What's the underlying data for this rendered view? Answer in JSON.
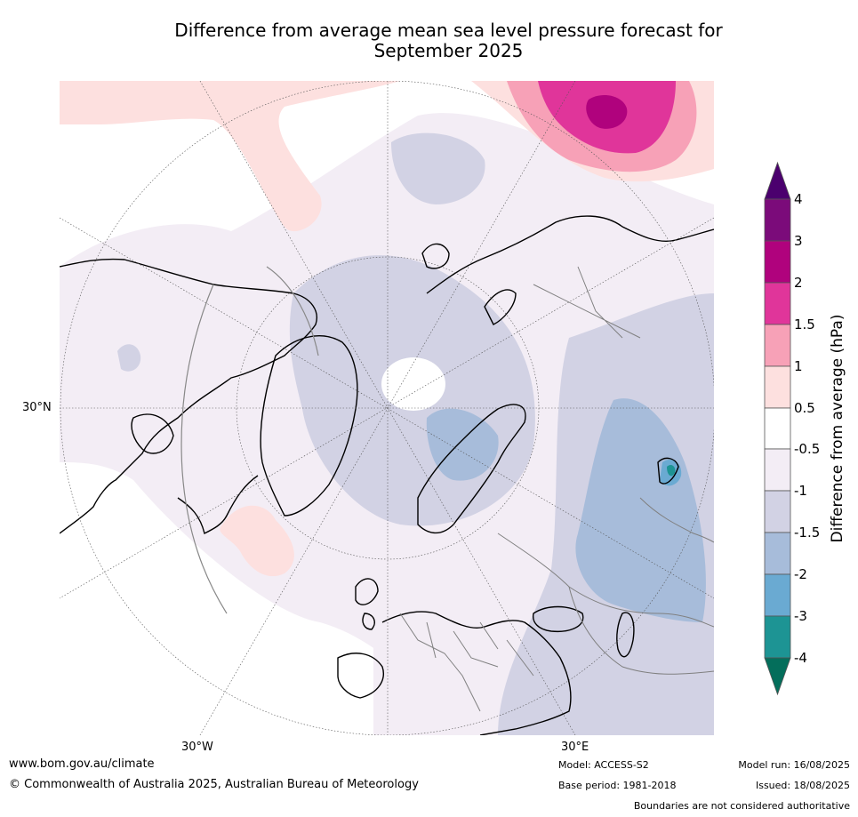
{
  "title": {
    "line1": "Difference from average mean sea level pressure forecast for",
    "line2": "September 2025"
  },
  "map": {
    "lat_label": "30°N",
    "lon_labels": [
      "30°W",
      "30°E"
    ],
    "colors": {
      "dark_purple": "#4b006e",
      "purple": "#7b0b7a",
      "magenta": "#b0027d",
      "pink_strong": "#e0359a",
      "pink": "#f7a1b7",
      "pink_light": "#fde0df",
      "neutral": "#ffffff",
      "lavender_light": "#f3edf5",
      "lavender": "#d2d2e4",
      "blue_grey": "#a7bcda",
      "blue": "#6aaad2",
      "teal": "#1d9494",
      "dark_teal": "#046e5b"
    }
  },
  "colorbar": {
    "title": "Difference from average (hPa)",
    "ticks": [
      "4",
      "3",
      "2",
      "1.5",
      "1",
      "0.5",
      "-0.5",
      "-1",
      "-1.5",
      "-2",
      "-3",
      "-4"
    ]
  },
  "footer": {
    "website": "www.bom.gov.au/climate",
    "copyright": "© Commonwealth of Australia 2025, Australian Bureau of Meteorology",
    "model": "Model: ACCESS-S2",
    "base_period": "Base period: 1981-2018",
    "model_run": "Model run: 16/08/2025",
    "issued": "Issued: 18/08/2025",
    "disclaimer": "Boundaries are not considered authoritative"
  }
}
